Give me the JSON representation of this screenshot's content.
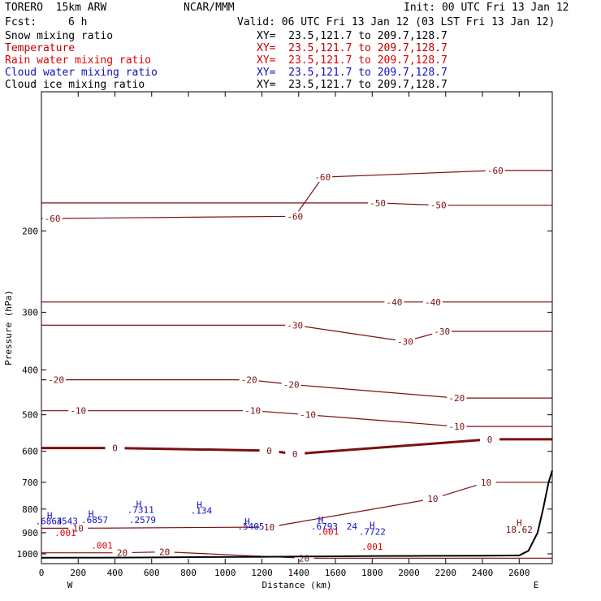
{
  "header": {
    "model": "TORERO  15km ARW",
    "center": "NCAR/MMM",
    "init": "Init: 00 UTC Fri 13 Jan 12",
    "fcst_label": "Fcst:",
    "fcst_value": "6 h",
    "valid": "Valid: 06 UTC Fri 13 Jan 12 (03 LST Fri 13 Jan 12)"
  },
  "legend": [
    {
      "name": "Snow mixing ratio",
      "xy": "XY=  23.5,121.7 to 209.7,128.7",
      "color": "#000000"
    },
    {
      "name": "Temperature",
      "xy": "XY=  23.5,121.7 to 209.7,128.7",
      "color": "#c00000"
    },
    {
      "name": "Rain water mixing ratio",
      "xy": "XY=  23.5,121.7 to 209.7,128.7",
      "color": "#e00000"
    },
    {
      "name": "Cloud water mixing ratio",
      "xy": "XY=  23.5,121.7 to 209.7,128.7",
      "color": "#1010c0"
    },
    {
      "name": "Cloud ice mixing ratio",
      "xy": "XY=  23.5,121.7 to 209.7,128.7",
      "color": "#000000"
    }
  ],
  "chart_data": {
    "type": "contour cross-section",
    "xlabel": "Distance (km)",
    "ylabel": "Pressure (hPa)",
    "xlim": [
      0,
      2780
    ],
    "ylim": [
      1050,
      100
    ],
    "y_scale": "log",
    "x_ticks": [
      0,
      200,
      400,
      600,
      800,
      1000,
      1200,
      1400,
      1600,
      1800,
      2000,
      2200,
      2400,
      2600
    ],
    "y_ticks": [
      200,
      300,
      400,
      500,
      600,
      700,
      800,
      900,
      1000
    ],
    "end_labels": {
      "left": "W",
      "right": "E"
    },
    "temperature_contours": [
      {
        "value": -60,
        "labels": [
          [
            60,
            188
          ],
          [
            1380,
            186
          ],
          [
            1530,
            153
          ],
          [
            2470,
            148
          ]
        ]
      },
      {
        "value": -50,
        "labels": [
          [
            1830,
            174
          ],
          [
            2160,
            176
          ]
        ]
      },
      {
        "value": -40,
        "labels": [
          [
            1920,
            285
          ],
          [
            2130,
            285
          ]
        ]
      },
      {
        "value": -30,
        "labels": [
          [
            1380,
            320
          ],
          [
            1980,
            347
          ],
          [
            2180,
            330
          ]
        ]
      },
      {
        "value": -20,
        "labels": [
          [
            80,
            420
          ],
          [
            1130,
            420
          ],
          [
            1360,
            430
          ],
          [
            2260,
            460
          ]
        ]
      },
      {
        "value": -10,
        "labels": [
          [
            200,
            490
          ],
          [
            1150,
            490
          ],
          [
            1450,
            500
          ],
          [
            2260,
            530
          ]
        ]
      },
      {
        "value": 0,
        "labels": [
          [
            400,
            590
          ],
          [
            1240,
            598
          ],
          [
            1380,
            608
          ],
          [
            2440,
            565
          ]
        ]
      },
      {
        "value": 10,
        "labels": [
          [
            200,
            880
          ],
          [
            1240,
            875
          ],
          [
            2130,
            760
          ],
          [
            2420,
            700
          ]
        ]
      },
      {
        "value": 20,
        "labels": [
          [
            440,
            995
          ],
          [
            670,
            990
          ],
          [
            1430,
            1022
          ]
        ]
      }
    ],
    "rain_water_labels": [
      {
        "text": ".001",
        "x": 130,
        "p": 915
      },
      {
        "text": ".001",
        "x": 330,
        "p": 975
      },
      {
        "text": ".001",
        "x": 1560,
        "p": 910
      },
      {
        "text": ".001",
        "x": 1800,
        "p": 980
      }
    ],
    "cloud_water_maxima": [
      {
        "text": ".6864",
        "x": 40,
        "p": 862
      },
      {
        "text": "3543",
        "x": 140,
        "p": 862
      },
      {
        "text": ".6857",
        "x": 290,
        "p": 858
      },
      {
        "text": ".2579",
        "x": 550,
        "p": 857
      },
      {
        "text": ".7311",
        "x": 540,
        "p": 816
      },
      {
        "text": ".134",
        "x": 870,
        "p": 818
      },
      {
        "text": ".5405",
        "x": 1140,
        "p": 885
      },
      {
        "text": ".6793",
        "x": 1540,
        "p": 885
      },
      {
        "text": "24",
        "x": 1690,
        "p": 885
      },
      {
        "text": ".7722",
        "x": 1800,
        "p": 910
      }
    ],
    "maxima_markers": [
      {
        "text": "H",
        "x": 45,
        "p": 838
      },
      {
        "text": "H",
        "x": 270,
        "p": 832
      },
      {
        "text": "H",
        "x": 530,
        "p": 793
      },
      {
        "text": "H",
        "x": 860,
        "p": 795
      },
      {
        "text": "H",
        "x": 1120,
        "p": 865
      },
      {
        "text": "H",
        "x": 1520,
        "p": 858
      },
      {
        "text": "H",
        "x": 1800,
        "p": 880
      },
      {
        "text": "H",
        "x": 2600,
        "p": 870
      }
    ],
    "temperature_max": {
      "text": "18.62",
      "x": 2600,
      "p": 900
    },
    "terrain_pressure": [
      [
        0,
        1020
      ],
      [
        300,
        1019
      ],
      [
        600,
        1018
      ],
      [
        900,
        1016
      ],
      [
        1200,
        1015
      ],
      [
        1500,
        1013
      ],
      [
        1800,
        1011
      ],
      [
        2100,
        1010
      ],
      [
        2400,
        1009
      ],
      [
        2600,
        1008
      ],
      [
        2650,
        985
      ],
      [
        2700,
        900
      ],
      [
        2730,
        800
      ],
      [
        2760,
        700
      ],
      [
        2780,
        660
      ]
    ]
  }
}
